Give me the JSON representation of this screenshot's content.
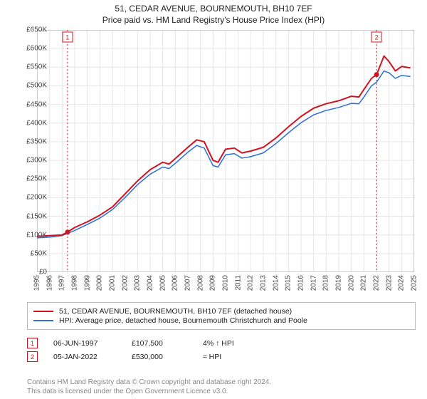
{
  "title_line1": "51, CEDAR AVENUE, BOURNEMOUTH, BH10 7EF",
  "title_line2": "Price paid vs. HM Land Registry's House Price Index (HPI)",
  "chart": {
    "type": "line",
    "background_color": "#ffffff",
    "grid_color": "#e6e6e6",
    "axis_color": "#888888",
    "x_min": 1995,
    "x_max": 2025,
    "x_ticks": [
      1995,
      1996,
      1997,
      1998,
      1999,
      2000,
      2001,
      2002,
      2003,
      2004,
      2005,
      2006,
      2007,
      2008,
      2009,
      2010,
      2011,
      2012,
      2013,
      2014,
      2015,
      2016,
      2017,
      2018,
      2019,
      2020,
      2021,
      2022,
      2023,
      2024,
      2025
    ],
    "y_min": 0,
    "y_max": 650000,
    "y_tick_step": 50000,
    "y_ticks": [
      0,
      50000,
      100000,
      150000,
      200000,
      250000,
      300000,
      350000,
      400000,
      450000,
      500000,
      550000,
      600000,
      650000
    ],
    "y_tick_labels": [
      "£0",
      "£50K",
      "£100K",
      "£150K",
      "£200K",
      "£250K",
      "£300K",
      "£350K",
      "£400K",
      "£450K",
      "£500K",
      "£550K",
      "£600K",
      "£650K"
    ],
    "x_tick_fontsize": 10,
    "y_tick_fontsize": 10,
    "series": [
      {
        "name": "price_paid",
        "color": "#d11320",
        "width": 2,
        "data": [
          [
            1995.0,
            96000
          ],
          [
            1996.0,
            98000
          ],
          [
            1997.0,
            100000
          ],
          [
            1997.43,
            107500
          ],
          [
            1998.0,
            120000
          ],
          [
            1999.0,
            135000
          ],
          [
            2000.0,
            153000
          ],
          [
            2001.0,
            175000
          ],
          [
            2002.0,
            210000
          ],
          [
            2003.0,
            245000
          ],
          [
            2004.0,
            275000
          ],
          [
            2005.0,
            295000
          ],
          [
            2005.5,
            290000
          ],
          [
            2006.0,
            305000
          ],
          [
            2007.0,
            335000
          ],
          [
            2007.7,
            355000
          ],
          [
            2008.3,
            350000
          ],
          [
            2009.0,
            300000
          ],
          [
            2009.4,
            295000
          ],
          [
            2010.0,
            330000
          ],
          [
            2010.7,
            333000
          ],
          [
            2011.3,
            320000
          ],
          [
            2012.0,
            325000
          ],
          [
            2013.0,
            335000
          ],
          [
            2014.0,
            360000
          ],
          [
            2015.0,
            390000
          ],
          [
            2016.0,
            418000
          ],
          [
            2017.0,
            440000
          ],
          [
            2018.0,
            452000
          ],
          [
            2019.0,
            460000
          ],
          [
            2020.0,
            472000
          ],
          [
            2020.6,
            470000
          ],
          [
            2021.0,
            490000
          ],
          [
            2021.6,
            520000
          ],
          [
            2022.01,
            530000
          ],
          [
            2022.6,
            580000
          ],
          [
            2023.0,
            565000
          ],
          [
            2023.5,
            540000
          ],
          [
            2024.0,
            552000
          ],
          [
            2024.7,
            548000
          ]
        ]
      },
      {
        "name": "hpi",
        "color": "#2e6fd6",
        "width": 1.5,
        "data": [
          [
            1995.0,
            92000
          ],
          [
            1996.0,
            94000
          ],
          [
            1997.0,
            98000
          ],
          [
            1998.0,
            112000
          ],
          [
            1999.0,
            128000
          ],
          [
            2000.0,
            145000
          ],
          [
            2001.0,
            168000
          ],
          [
            2002.0,
            200000
          ],
          [
            2003.0,
            235000
          ],
          [
            2004.0,
            263000
          ],
          [
            2005.0,
            282000
          ],
          [
            2005.5,
            278000
          ],
          [
            2006.0,
            292000
          ],
          [
            2007.0,
            322000
          ],
          [
            2007.7,
            340000
          ],
          [
            2008.3,
            333000
          ],
          [
            2009.0,
            286000
          ],
          [
            2009.4,
            282000
          ],
          [
            2010.0,
            315000
          ],
          [
            2010.7,
            318000
          ],
          [
            2011.3,
            306000
          ],
          [
            2012.0,
            310000
          ],
          [
            2013.0,
            320000
          ],
          [
            2014.0,
            345000
          ],
          [
            2015.0,
            374000
          ],
          [
            2016.0,
            401000
          ],
          [
            2017.0,
            422000
          ],
          [
            2018.0,
            434000
          ],
          [
            2019.0,
            442000
          ],
          [
            2020.0,
            453000
          ],
          [
            2020.6,
            452000
          ],
          [
            2021.0,
            470000
          ],
          [
            2021.6,
            500000
          ],
          [
            2022.01,
            510000
          ],
          [
            2022.6,
            540000
          ],
          [
            2023.0,
            535000
          ],
          [
            2023.5,
            520000
          ],
          [
            2024.0,
            528000
          ],
          [
            2024.7,
            525000
          ]
        ]
      }
    ],
    "sale_markers": [
      {
        "n": "1",
        "x": 1997.43,
        "y": 107500,
        "color": "#d11320"
      },
      {
        "n": "2",
        "x": 2022.01,
        "y": 530000,
        "color": "#d11320"
      }
    ],
    "sale_vline_color": "#d11320",
    "sale_vline_dash": "2,3"
  },
  "legend": {
    "items": [
      {
        "color": "#d11320",
        "label": "51, CEDAR AVENUE, BOURNEMOUTH, BH10 7EF (detached house)"
      },
      {
        "color": "#2e6fd6",
        "label": "HPI: Average price, detached house, Bournemouth Christchurch and Poole"
      }
    ]
  },
  "sales": [
    {
      "n": "1",
      "date": "06-JUN-1997",
      "price": "£107,500",
      "diff": "4% ↑ HPI",
      "color": "#d11320"
    },
    {
      "n": "2",
      "date": "05-JAN-2022",
      "price": "£530,000",
      "diff": "≈ HPI",
      "color": "#d11320"
    }
  ],
  "footer_line1": "Contains HM Land Registry data © Crown copyright and database right 2024.",
  "footer_line2": "This data is licensed under the Open Government Licence v3.0."
}
